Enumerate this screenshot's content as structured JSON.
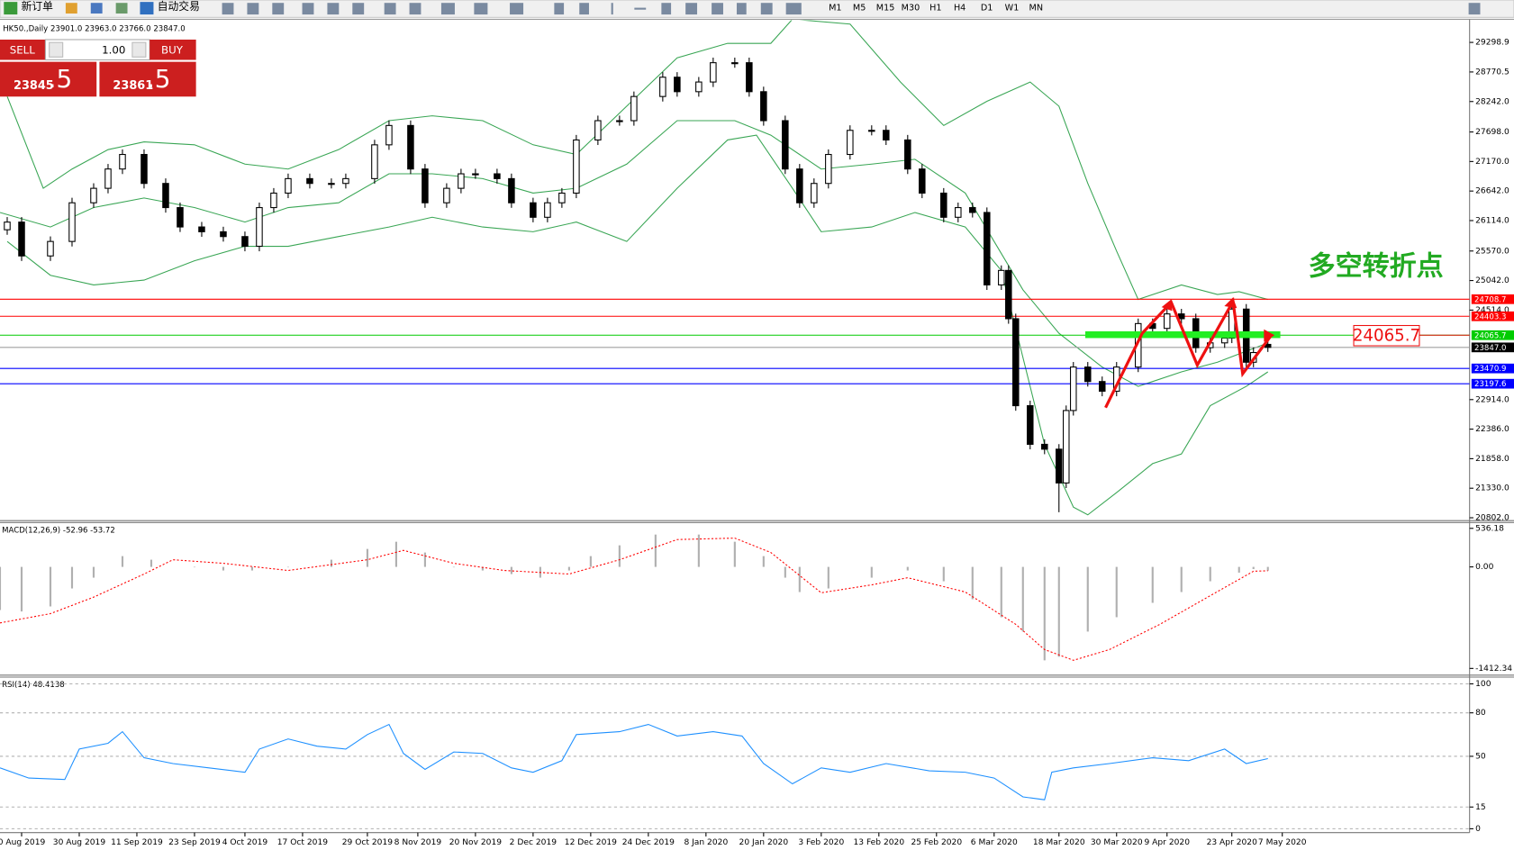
{
  "toolbar": {
    "new_order": "新订单",
    "auto_trading": "自动交易",
    "timeframes": [
      "M1",
      "M5",
      "M15",
      "M30",
      "H1",
      "H4",
      "D1",
      "W1",
      "MN"
    ]
  },
  "trade_panel": {
    "sell": "SELL",
    "buy": "BUY",
    "lot": "1.00",
    "bid_main": "23845",
    "bid_frac": ".5",
    "ask_main": "23861",
    "ask_frac": ".5"
  },
  "chart_data": [
    {
      "type": "candlestick",
      "title": "HK50.,Daily 23901.0 23963.0 23766.0 23847.0",
      "annotation": "多空转折点",
      "x": [
        1,
        3,
        7,
        10,
        13,
        15,
        17,
        20,
        23,
        25,
        28,
        31,
        34,
        36,
        38,
        40,
        43,
        46,
        48,
        52,
        54,
        57,
        59,
        62,
        64,
        66,
        69,
        71,
        74,
        76,
        78,
        80,
        83,
        86,
        88,
        92,
        94,
        97,
        99,
        102,
        104,
        106,
        109,
        111,
        113,
        115,
        118,
        121,
        123,
        126,
        128,
        131,
        133,
        135,
        137,
        139,
        140,
        141,
        143,
        145,
        147,
        148,
        149,
        151,
        153,
        155,
        158,
        160,
        162,
        164,
        166,
        168,
        170,
        171,
        173,
        174,
        176
      ],
      "open": [
        25950,
        26087,
        25482,
        25741,
        26432,
        26691,
        27036,
        27296,
        26778,
        26346,
        26000,
        25914,
        25828,
        25655,
        26346,
        26605,
        26864,
        26778,
        26778,
        26864,
        27468,
        27814,
        27036,
        26432,
        26691,
        26950,
        26950,
        26864,
        26432,
        26173,
        26432,
        26605,
        27555,
        27900,
        27900,
        28332,
        28677,
        28418,
        28591,
        28936,
        28936,
        28418,
        27900,
        27036,
        26432,
        26778,
        27296,
        27727,
        27727,
        27555,
        27036,
        26605,
        26173,
        26346,
        26259,
        24964,
        25223,
        24360,
        22805,
        22115,
        22028,
        21424,
        22719,
        23496,
        23237,
        23064,
        23496,
        24273,
        24187,
        24446,
        24360,
        23842,
        23928,
        24014,
        24532,
        23582,
        23901
      ],
      "high": [
        26177,
        26177,
        25831,
        26522,
        26781,
        27126,
        27386,
        27386,
        26868,
        26436,
        26090,
        26004,
        25918,
        26436,
        26695,
        26954,
        26954,
        26868,
        26954,
        27558,
        27904,
        27904,
        27126,
        26781,
        27040,
        27040,
        27040,
        26954,
        26522,
        26522,
        26695,
        27645,
        27990,
        27990,
        28422,
        28767,
        28767,
        28681,
        29026,
        29026,
        29026,
        28508,
        27990,
        27126,
        26868,
        27386,
        27817,
        27817,
        27817,
        27645,
        27126,
        26695,
        26436,
        26436,
        26349,
        25313,
        25313,
        24450,
        22895,
        22205,
        22118,
        22809,
        23586,
        23586,
        23327,
        23586,
        24363,
        24363,
        24536,
        24536,
        24450,
        24018,
        24104,
        24622,
        24622,
        23845,
        23963
      ],
      "low": [
        25860,
        25392,
        25392,
        25651,
        26342,
        26601,
        26946,
        26688,
        26256,
        25910,
        25824,
        25738,
        25565,
        25565,
        26256,
        26515,
        26688,
        26688,
        26688,
        26774,
        27378,
        26946,
        26342,
        26342,
        26601,
        26860,
        26774,
        26342,
        26083,
        26083,
        26342,
        26515,
        27465,
        27810,
        27810,
        28242,
        28328,
        28328,
        28501,
        28846,
        28328,
        27810,
        26946,
        26342,
        26342,
        26688,
        27206,
        27637,
        27465,
        26946,
        26515,
        26083,
        26083,
        26169,
        24874,
        24874,
        24270,
        22715,
        22025,
        21938,
        20900,
        21334,
        22629,
        23147,
        22974,
        22974,
        23406,
        24097,
        24097,
        24270,
        23752,
        23752,
        23838,
        23924,
        23492,
        23492,
        23766
      ],
      "close": [
        26087,
        25482,
        25741,
        26432,
        26691,
        27036,
        27296,
        26778,
        26346,
        26000,
        25914,
        25828,
        25655,
        26346,
        26605,
        26864,
        26778,
        26778,
        26864,
        27468,
        27814,
        27036,
        26432,
        26691,
        26950,
        26950,
        26864,
        26432,
        26173,
        26432,
        26605,
        27555,
        27900,
        27900,
        28332,
        28677,
        28418,
        28591,
        28936,
        28936,
        28418,
        27900,
        27036,
        26432,
        26778,
        27296,
        27727,
        27727,
        27555,
        27036,
        26605,
        26173,
        26346,
        26259,
        24964,
        25223,
        24360,
        22805,
        22115,
        22028,
        21424,
        22719,
        23496,
        23237,
        23064,
        23496,
        24273,
        24187,
        24446,
        24360,
        23842,
        23928,
        24014,
        24532,
        23582,
        23755,
        23847
      ],
      "bands": [
        {
          "color": "#3aa655",
          "x": [
            1,
            6,
            10,
            15,
            20,
            27,
            34,
            40,
            47,
            54,
            60,
            67,
            74,
            80,
            87,
            94,
            101,
            107,
            110,
            118,
            125,
            131,
            137,
            143,
            147,
            151,
            155,
            158,
            164,
            169,
            172,
            176
          ],
          "values": [
            28332,
            26691,
            27036,
            27382,
            27520,
            27468,
            27123,
            27036,
            27382,
            27900,
            27987,
            27900,
            27468,
            27296,
            28159,
            29023,
            29282,
            29282,
            29713,
            29627,
            28591,
            27814,
            28246,
            28591,
            28159,
            26778,
            25569,
            24705,
            24964,
            24792,
            24843,
            24705
          ]
        },
        {
          "color": "#3aa655",
          "x": [
            0,
            7,
            13,
            20,
            27,
            34,
            40,
            47,
            54,
            60,
            67,
            74,
            80,
            87,
            94,
            102,
            107,
            114,
            121,
            127,
            134,
            138,
            142,
            147,
            153,
            158,
            164,
            169,
            176
          ],
          "values": [
            26259,
            26000,
            26346,
            26518,
            26346,
            26087,
            26346,
            26432,
            26950,
            26950,
            26864,
            26605,
            26691,
            27123,
            27900,
            27900,
            27641,
            27036,
            27123,
            27209,
            26605,
            25741,
            24878,
            24101,
            23496,
            23151,
            23410,
            23582,
            23928
          ]
        },
        {
          "color": "#3aa655",
          "x": [
            1,
            7,
            13,
            20,
            27,
            34,
            40,
            47,
            54,
            60,
            67,
            74,
            80,
            87,
            94,
            101,
            105,
            110,
            114,
            121,
            127,
            134,
            139,
            145,
            149,
            151,
            155,
            160,
            164,
            168,
            173,
            176
          ],
          "values": [
            25741,
            25137,
            24964,
            25050,
            25396,
            25655,
            25655,
            25828,
            26000,
            26173,
            26000,
            25914,
            26087,
            25741,
            26691,
            27555,
            27641,
            26691,
            25914,
            26000,
            26259,
            26000,
            25223,
            22115,
            20992,
            20854,
            21251,
            21769,
            21942,
            22805,
            23151,
            23410
          ]
        }
      ],
      "levels": [
        24708.7,
        24403.3,
        24065.7,
        {
          "value": 23847,
          "label": "23847.0"
        },
        23470.9,
        23197.6
      ],
      "level_colors": [
        "#ff0000",
        "#ff0000",
        "#00cc00",
        "#000000",
        "#0000ff",
        "#0000ff"
      ],
      "xlim": [
        0,
        204
      ],
      "xticks": [
        {
          "value": 3,
          "label": "0 Aug 2019"
        },
        {
          "value": 11,
          "label": "30 Aug 2019"
        },
        {
          "value": 19,
          "label": "11 Sep 2019"
        },
        {
          "value": 27,
          "label": "23 Sep 2019"
        },
        {
          "value": 34,
          "label": "4 Oct 2019"
        },
        {
          "value": 42,
          "label": "17 Oct 2019"
        },
        {
          "value": 51,
          "label": "29 Oct 2019"
        },
        {
          "value": 58,
          "label": "8 Nov 2019"
        },
        {
          "value": 66,
          "label": "20 Nov 2019"
        },
        {
          "value": 74,
          "label": "2 Dec 2019"
        },
        {
          "value": 82,
          "label": "12 Dec 2019"
        },
        {
          "value": 90,
          "label": "24 Dec 2019"
        },
        {
          "value": 98,
          "label": "8 Jan 2020"
        },
        {
          "value": 106,
          "label": "20 Jan 2020"
        },
        {
          "value": 114,
          "label": "3 Feb 2020"
        },
        {
          "value": 122,
          "label": "13 Feb 2020"
        },
        {
          "value": 130,
          "label": "25 Feb 2020"
        },
        {
          "value": 138,
          "label": "6 Mar 2020"
        },
        {
          "value": 147,
          "label": "18 Mar 2020"
        },
        {
          "value": 155,
          "label": "30 Mar 2020"
        },
        {
          "value": 162,
          "label": "9 Apr 2020"
        },
        {
          "value": 171,
          "label": "23 Apr 2020"
        },
        {
          "value": 178,
          "label": "7 May 2020"
        }
      ],
      "ylim": [
        20768,
        29677
      ],
      "yticks": [
        29298.9,
        28770.5,
        {
          "value": 28242,
          "label": "28242.0"
        },
        {
          "value": 27698,
          "label": "27698.0"
        },
        {
          "value": 27170,
          "label": "27170.0"
        },
        {
          "value": 26642,
          "label": "26642.0"
        },
        {
          "value": 26114,
          "label": "26114.0"
        },
        {
          "value": 25570,
          "label": "25570.0"
        },
        {
          "value": 25042,
          "label": "25042.0"
        },
        {
          "value": 24514,
          "label": "24514.0"
        },
        {
          "value": 22914,
          "label": "22914.0"
        },
        {
          "value": 22386,
          "label": "22386.0"
        },
        {
          "value": 21858,
          "label": "21858.0"
        },
        {
          "value": 21330,
          "label": "21330.0"
        },
        {
          "value": 20802,
          "label": "20802.0"
        }
      ]
    },
    {
      "type": "macd",
      "title": "MACD(12,26,9) -52.96 -53.72",
      "xlim": [
        0,
        204
      ],
      "ylim": [
        -1412.34,
        536.18
      ],
      "yticks": [
        536.18,
        {
          "value": 0,
          "label": "0.00"
        },
        -1412.34
      ],
      "series": [
        {
          "type": "bar",
          "color": "#b0b0b0",
          "x": [
            0,
            3,
            7,
            10,
            13,
            17,
            21,
            27,
            31,
            35,
            40,
            46,
            51,
            55,
            59,
            63,
            67,
            71,
            75,
            79,
            82,
            86,
            91,
            97,
            102,
            106,
            109,
            111,
            115,
            121,
            126,
            131,
            135,
            139,
            142,
            145,
            147,
            151,
            155,
            160,
            164,
            168,
            172,
            174,
            176
          ],
          "values": [
            -600,
            -620,
            -550,
            -300,
            -150,
            150,
            100,
            0,
            -50,
            -50,
            0,
            100,
            250,
            350,
            200,
            0,
            -50,
            -100,
            -150,
            -50,
            150,
            300,
            450,
            450,
            350,
            150,
            -150,
            -350,
            -300,
            -150,
            -50,
            -200,
            -450,
            -700,
            -900,
            -1300,
            -1250,
            -900,
            -700,
            -500,
            -350,
            -200,
            -80,
            -30,
            -52.96
          ]
        },
        {
          "type": "line",
          "color": "#ff0000",
          "x": [
            0,
            7,
            13,
            20,
            24,
            31,
            40,
            51,
            56,
            63,
            70,
            79,
            86,
            94,
            102,
            107,
            114,
            121,
            126,
            134,
            141,
            145,
            149,
            154,
            161,
            168,
            174,
            176
          ],
          "values": [
            -780,
            -650,
            -420,
            -100,
            100,
            50,
            -50,
            100,
            230,
            50,
            -50,
            -100,
            100,
            380,
            400,
            200,
            -360,
            -250,
            -150,
            -350,
            -800,
            -1150,
            -1300,
            -1150,
            -800,
            -400,
            -60,
            -53.72
          ]
        }
      ]
    },
    {
      "type": "line",
      "title": "RSI(14) 48.4138",
      "grid": true,
      "xlim": [
        0,
        204
      ],
      "ylim": [
        0,
        100
      ],
      "yticks": [
        100,
        80,
        50,
        15,
        0
      ],
      "series": [
        {
          "color": "#1e90ff",
          "x": [
            0,
            4,
            9,
            11,
            15,
            17,
            20,
            24,
            29,
            34,
            36,
            40,
            44,
            48,
            51,
            54,
            56,
            59,
            63,
            67,
            71,
            74,
            78,
            80,
            86,
            90,
            94,
            99,
            103,
            106,
            110,
            114,
            118,
            123,
            129,
            134,
            138,
            142,
            145,
            146,
            149,
            154,
            160,
            165,
            170,
            173,
            176
          ],
          "values": [
            42,
            35,
            34,
            55,
            59,
            67,
            49,
            45,
            42,
            39,
            55,
            62,
            57,
            55,
            65,
            72,
            52,
            41,
            53,
            52,
            42,
            39,
            47,
            65,
            67,
            72,
            64,
            67,
            64,
            45,
            31,
            42,
            39,
            45,
            40,
            39,
            35,
            22,
            20,
            39,
            42,
            45,
            49,
            47,
            55,
            45,
            48.4138
          ]
        }
      ]
    }
  ]
}
